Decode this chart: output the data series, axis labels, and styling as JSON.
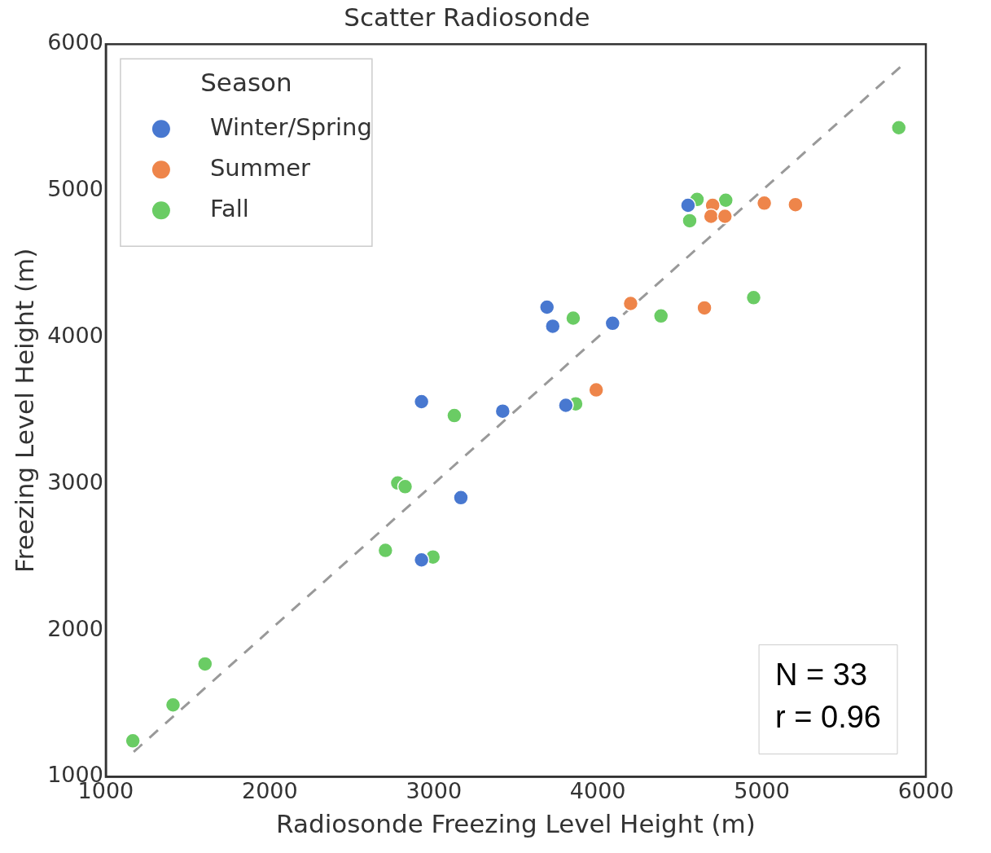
{
  "chart_data": {
    "type": "scatter",
    "title": "Scatter Radiosonde",
    "xlabel": "Radiosonde Freezing Level Height (m)",
    "ylabel": "Freezing Level Height (m)",
    "legend_title": "Season",
    "legend": "top left",
    "grid": false,
    "marker": "circle",
    "xlim": [
      1000,
      6000
    ],
    "xticks": [
      1000,
      2000,
      3000,
      4000,
      5000,
      6000
    ],
    "ylim": [
      1000,
      6000
    ],
    "yticks": [
      1000,
      2000,
      3000,
      4000,
      5000,
      6000
    ],
    "annotations": [
      "N = 33\nr = 0.96"
    ],
    "series": [
      {
        "name": "Winter/Spring",
        "color": "#4878d0",
        "x": [
          2925,
          2925,
          3165,
          3420,
          3690,
          3725,
          3805,
          4090,
          4550
        ],
        "values": [
          3560,
          2480,
          2905,
          3495,
          4205,
          4075,
          3535,
          4095,
          4900
        ]
      },
      {
        "name": "Summer",
        "color": "#ee854a",
        "x": [
          3990,
          4200,
          4650,
          4700,
          4690,
          4775,
          5015,
          5205
        ],
        "values": [
          3640,
          4230,
          4200,
          4900,
          4825,
          4825,
          4915,
          4905
        ]
      },
      {
        "name": "Fall",
        "color": "#6acc64",
        "x": [
          1165,
          1410,
          1605,
          2705,
          2995,
          2780,
          2825,
          3125,
          3850,
          3865,
          4385,
          4560,
          4605,
          4780,
          4950,
          5835
        ],
        "values": [
          1245,
          1490,
          1770,
          2545,
          2500,
          3005,
          2980,
          3465,
          4130,
          3545,
          4145,
          4795,
          4940,
          4935,
          4270,
          5430
        ]
      },
      {
        "type": "line",
        "color": "#999999",
        "line_style": "dashed",
        "marker": "none",
        "x": [
          1170,
          5850
        ],
        "values": [
          1170,
          5850
        ]
      }
    ]
  }
}
